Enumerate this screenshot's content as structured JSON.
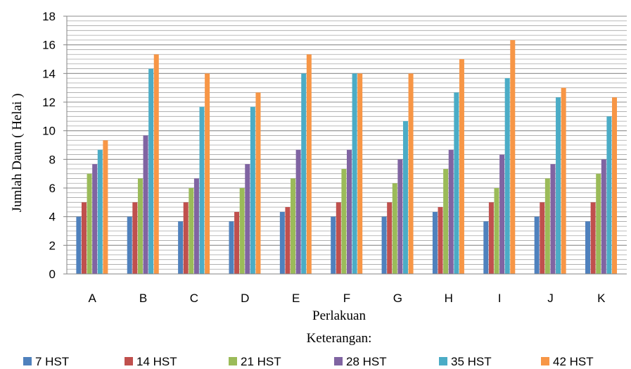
{
  "chart_data": {
    "type": "bar",
    "xlabel": "Perlakuan",
    "ylabel": "Jumlah Daun ( Helai )",
    "note": "Keterangan:",
    "ylim": [
      0,
      18
    ],
    "y_ticks": [
      "0",
      "2",
      "4",
      "6",
      "8",
      "10",
      "12",
      "14",
      "16",
      "18"
    ],
    "minor_grid_step": 0.33333,
    "grid": true,
    "legend_position": "bottom",
    "categories": [
      "A",
      "B",
      "C",
      "D",
      "E",
      "F",
      "G",
      "H",
      "I",
      "J",
      "K"
    ],
    "series": [
      {
        "name": "7 HST",
        "color": "#4F81BD",
        "values": [
          4,
          4,
          3.67,
          3.67,
          4.33,
          4,
          4,
          4.33,
          3.67,
          4,
          3.67
        ]
      },
      {
        "name": "14 HST",
        "color": "#C0504D",
        "values": [
          5,
          5,
          5,
          4.33,
          4.67,
          5,
          5,
          4.67,
          5,
          5,
          5
        ]
      },
      {
        "name": "21 HST",
        "color": "#9BBB59",
        "values": [
          7,
          6.67,
          6,
          6,
          6.67,
          7.33,
          6.33,
          7.33,
          6,
          6.67,
          7
        ]
      },
      {
        "name": "28 HST",
        "color": "#8064A2",
        "values": [
          7.67,
          9.67,
          6.67,
          7.67,
          8.67,
          8.67,
          8,
          8.67,
          8.33,
          7.67,
          8
        ]
      },
      {
        "name": "35 HST",
        "color": "#4BACC6",
        "values": [
          8.67,
          14.33,
          11.67,
          11.67,
          14,
          14,
          10.67,
          12.67,
          13.67,
          12.33,
          11
        ]
      },
      {
        "name": "42 HST",
        "color": "#F79646",
        "values": [
          9.33,
          15.33,
          14,
          12.67,
          15.33,
          14,
          14,
          15,
          16.33,
          13,
          12.33
        ]
      }
    ]
  }
}
